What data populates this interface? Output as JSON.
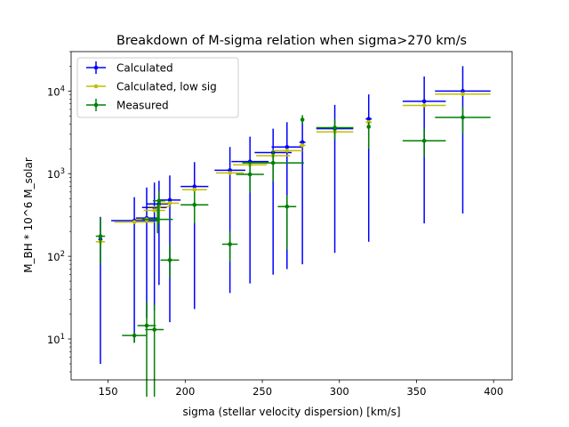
{
  "chart_data": {
    "type": "scatter",
    "title": "Breakdown of M-sigma relation when sigma>270 km/s",
    "xlabel": "sigma (stellar velocity dispersion) [km/s]",
    "ylabel": "M_BH * 10^6 M_solar",
    "xlim": [
      126,
      412
    ],
    "ylim": [
      3.2,
      30000
    ],
    "yscale": "log",
    "xticks": [
      150,
      200,
      250,
      300,
      350,
      400
    ],
    "xtick_labels": [
      "150",
      "200",
      "250",
      "300",
      "350",
      "400"
    ],
    "yticks": [
      10,
      100,
      1000,
      10000
    ],
    "ytick_labels": [
      "10",
      "10",
      "10",
      "10"
    ],
    "ytick_exponents": [
      "1",
      "2",
      "3",
      "4"
    ],
    "grid": false,
    "legend_position": "upper-left",
    "series": [
      {
        "name": "Calculated",
        "color": "#0000ff",
        "points": [
          {
            "x": 145,
            "xerr": 0,
            "y": 160,
            "ylo": 5,
            "yhi": 300
          },
          {
            "x": 167,
            "xerr": 15,
            "y": 270,
            "ylo": 9,
            "yhi": 520
          },
          {
            "x": 175,
            "xerr": 7,
            "y": 290,
            "ylo": 18,
            "yhi": 680
          },
          {
            "x": 180,
            "xerr": 8,
            "y": 390,
            "ylo": 22,
            "yhi": 780
          },
          {
            "x": 183,
            "xerr": 8,
            "y": 430,
            "ylo": 45,
            "yhi": 820
          },
          {
            "x": 190,
            "xerr": 7,
            "y": 480,
            "ylo": 16,
            "yhi": 950
          },
          {
            "x": 206,
            "xerr": 9,
            "y": 700,
            "ylo": 23,
            "yhi": 1380
          },
          {
            "x": 229,
            "xerr": 10,
            "y": 1100,
            "ylo": 36,
            "yhi": 2100
          },
          {
            "x": 242,
            "xerr": 12,
            "y": 1400,
            "ylo": 47,
            "yhi": 2800
          },
          {
            "x": 257,
            "xerr": 12,
            "y": 1800,
            "ylo": 60,
            "yhi": 3500
          },
          {
            "x": 266,
            "xerr": 10,
            "y": 2100,
            "ylo": 70,
            "yhi": 4200
          },
          {
            "x": 276,
            "xerr": 2,
            "y": 2400,
            "ylo": 80,
            "yhi": 4700
          },
          {
            "x": 297,
            "xerr": 12,
            "y": 3500,
            "ylo": 110,
            "yhi": 6800
          },
          {
            "x": 319,
            "xerr": 2,
            "y": 4600,
            "ylo": 150,
            "yhi": 9100
          },
          {
            "x": 355,
            "xerr": 14,
            "y": 7500,
            "ylo": 250,
            "yhi": 15000
          },
          {
            "x": 380,
            "xerr": 18,
            "y": 10000,
            "ylo": 330,
            "yhi": 20000
          }
        ]
      },
      {
        "name": "Calculated, low sig",
        "color": "#bfbf00",
        "points": [
          {
            "x": 145,
            "xerr": 3,
            "y": 150
          },
          {
            "x": 167,
            "xerr": 13,
            "y": 260
          },
          {
            "x": 175,
            "xerr": 7,
            "y": 280
          },
          {
            "x": 180,
            "xerr": 7,
            "y": 360
          },
          {
            "x": 183,
            "xerr": 7,
            "y": 400
          },
          {
            "x": 190,
            "xerr": 6,
            "y": 440
          },
          {
            "x": 206,
            "xerr": 8,
            "y": 640
          },
          {
            "x": 229,
            "xerr": 9,
            "y": 1020
          },
          {
            "x": 242,
            "xerr": 11,
            "y": 1280
          },
          {
            "x": 257,
            "xerr": 11,
            "y": 1650
          },
          {
            "x": 266,
            "xerr": 10,
            "y": 1900
          },
          {
            "x": 276,
            "xerr": 2,
            "y": 2200
          },
          {
            "x": 297,
            "xerr": 12,
            "y": 3200
          },
          {
            "x": 319,
            "xerr": 2,
            "y": 4200
          },
          {
            "x": 355,
            "xerr": 14,
            "y": 6700
          },
          {
            "x": 380,
            "xerr": 18,
            "y": 9200
          }
        ]
      },
      {
        "name": "Measured",
        "color": "#008000",
        "points": [
          {
            "x": 145,
            "xerr": 3,
            "y": 175,
            "ylo": 80,
            "yhi": 290
          },
          {
            "x": 167,
            "xerr": 8,
            "y": 11,
            "ylo": 9,
            "yhi": 12
          },
          {
            "x": 175,
            "xerr": 6,
            "y": 14.5,
            "ylo": 2,
            "yhi": 28
          },
          {
            "x": 180,
            "xerr": 6,
            "y": 13,
            "ylo": 2,
            "yhi": 26
          },
          {
            "x": 182,
            "xerr": 10,
            "y": 280,
            "ylo": 190,
            "yhi": 420
          },
          {
            "x": 183,
            "xerr": 4,
            "y": 470,
            "ylo": 250,
            "yhi": 620
          },
          {
            "x": 190,
            "xerr": 6,
            "y": 90,
            "ylo": 55,
            "yhi": 140
          },
          {
            "x": 206,
            "xerr": 9,
            "y": 420,
            "ylo": 250,
            "yhi": 600
          },
          {
            "x": 229,
            "xerr": 5,
            "y": 140,
            "ylo": 85,
            "yhi": 200
          },
          {
            "x": 242,
            "xerr": 9,
            "y": 980,
            "ylo": 590,
            "yhi": 1400
          },
          {
            "x": 257,
            "xerr": 20,
            "y": 1350,
            "ylo": 800,
            "yhi": 1900
          },
          {
            "x": 266,
            "xerr": 6,
            "y": 400,
            "ylo": 120,
            "yhi": 550
          },
          {
            "x": 276,
            "xerr": 1,
            "y": 4500,
            "ylo": 4000,
            "yhi": 5100
          },
          {
            "x": 297,
            "xerr": 12,
            "y": 3600,
            "ylo": 2600,
            "yhi": 4600
          },
          {
            "x": 319,
            "xerr": 1,
            "y": 3700,
            "ylo": 2000,
            "yhi": 4200
          },
          {
            "x": 355,
            "xerr": 14,
            "y": 2500,
            "ylo": 1600,
            "yhi": 3500
          },
          {
            "x": 380,
            "xerr": 18,
            "y": 4800,
            "ylo": 3000,
            "yhi": 6500
          }
        ]
      }
    ]
  }
}
